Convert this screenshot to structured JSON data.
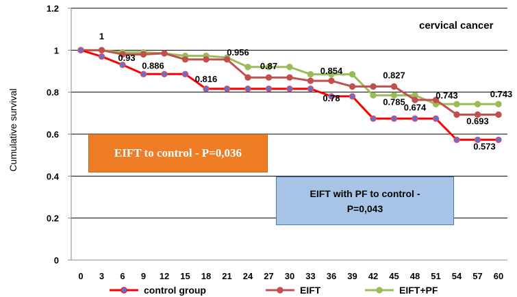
{
  "chart_data": {
    "type": "line",
    "step": true,
    "annotation": "cervical cancer",
    "ylabel": "Cumulative survival",
    "ylim": [
      0,
      1.2
    ],
    "yticks": [
      0,
      0.2,
      0.4,
      0.6,
      0.8,
      1,
      1.2
    ],
    "ytick_labels": [
      "0",
      "0.2",
      "0.4",
      "0.6",
      "0.8",
      "1",
      "1.2"
    ],
    "x": [
      0,
      3,
      6,
      9,
      12,
      15,
      18,
      21,
      24,
      27,
      30,
      33,
      36,
      39,
      42,
      45,
      48,
      51,
      54,
      57,
      60
    ],
    "xtick_labels": [
      "0",
      "3",
      "6",
      "9",
      "12",
      "15",
      "18",
      "21",
      "24",
      "27",
      "30",
      "33",
      "36",
      "39",
      "42",
      "45",
      "48",
      "51",
      "54",
      "57",
      "60"
    ],
    "grid": true,
    "legend_position": "bottom",
    "series": [
      {
        "name": "control group",
        "color": "#ff0000",
        "marker_color": "#6a6fc6",
        "values": [
          1,
          0.97,
          0.93,
          0.886,
          0.886,
          0.886,
          0.816,
          0.816,
          0.816,
          0.816,
          0.816,
          0.816,
          0.78,
          0.78,
          0.674,
          0.674,
          0.674,
          0.674,
          0.573,
          0.573,
          0.573
        ]
      },
      {
        "name": "EIFT",
        "color": "#c0504d",
        "marker_color": "#c0504d",
        "values": [
          1,
          1,
          0.98,
          0.98,
          0.985,
          0.956,
          0.956,
          0.956,
          0.87,
          0.87,
          0.87,
          0.854,
          0.854,
          0.827,
          0.827,
          0.827,
          0.763,
          0.763,
          0.693,
          0.693,
          0.693
        ]
      },
      {
        "name": "EIFT+PF",
        "color": "#9bbb59",
        "marker_color": "#9bbb59",
        "values": [
          1,
          1,
          0.99,
          0.99,
          0.985,
          0.973,
          0.973,
          0.965,
          0.92,
          0.92,
          0.92,
          0.885,
          0.885,
          0.885,
          0.785,
          0.785,
          0.785,
          0.743,
          0.743,
          0.743,
          0.743
        ]
      }
    ],
    "data_labels": [
      {
        "text": "1",
        "x": 3,
        "y": 1
      },
      {
        "text": "0.93",
        "x": 6,
        "y": 0.93
      },
      {
        "text": "0.886",
        "x": 9,
        "y": 0.886
      },
      {
        "text": "0.956",
        "x": 21,
        "y": 0.956
      },
      {
        "text": "0.816",
        "x": 18,
        "y": 0.816
      },
      {
        "text": "0.87",
        "x": 27,
        "y": 0.87
      },
      {
        "text": "0.854",
        "x": 36,
        "y": 0.854
      },
      {
        "text": "0.78",
        "x": 36,
        "y": 0.78
      },
      {
        "text": "0.827",
        "x": 45,
        "y": 0.827
      },
      {
        "text": "0.785",
        "x": 45,
        "y": 0.785
      },
      {
        "text": "0.674",
        "x": 48,
        "y": 0.674
      },
      {
        "text": "0.743",
        "x": 51,
        "y": 0.743
      },
      {
        "text": "0.743",
        "x": 60,
        "y": 0.743
      },
      {
        "text": "0.693",
        "x": 57,
        "y": 0.693
      },
      {
        "text": "0.573",
        "x": 57,
        "y": 0.573
      }
    ],
    "text_boxes": {
      "eift_vs_control": "EIFT to control - P=0,036",
      "eift_pf_vs_control_line1": "EIFT with PF to control -",
      "eift_pf_vs_control_line2": "P=0,043",
      "eift_color": "#ee7d26",
      "eift_pf_color": "#a7c3e6"
    }
  }
}
